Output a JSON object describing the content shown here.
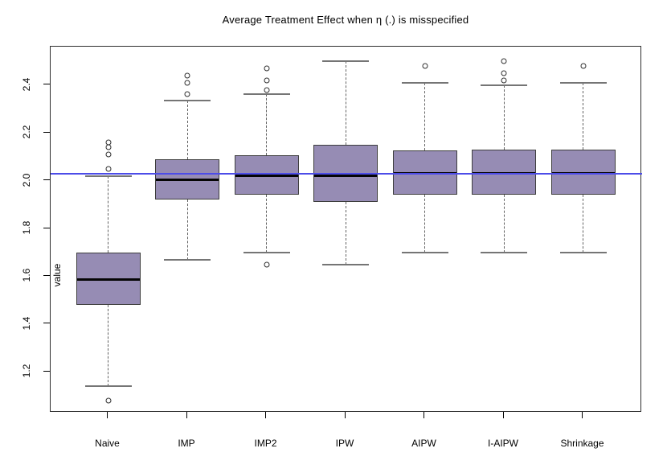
{
  "chart_data": {
    "type": "boxplot",
    "title": "Average Treatment Effect when η (.) is misspecified",
    "xlabel": "",
    "ylabel": "value",
    "ylim": [
      1.03,
      2.56
    ],
    "yticks": [
      "1.2",
      "1.4",
      "1.6",
      "1.8",
      "2.0",
      "2.2",
      "2.4"
    ],
    "ytick_values": [
      1.2,
      1.4,
      1.6,
      1.8,
      2.0,
      2.2,
      2.4
    ],
    "grid": false,
    "legend": "none",
    "categories": [
      "Naive",
      "IMP",
      "IMP2",
      "IPW",
      "AIPW",
      "I-AIPW",
      "Shrinkage"
    ],
    "reference_line": {
      "value": 2.03,
      "color": "#4c4ce8"
    },
    "box_fill_color": "#968cb4",
    "box_border_color": "#3d3d3d",
    "median_color": "#050505",
    "series": [
      {
        "name": "Naive",
        "whisker_low": 1.14,
        "q1": 1.48,
        "median": 1.585,
        "q3": 1.7,
        "whisker_high": 2.02,
        "outliers": [
          2.16,
          2.14,
          2.11,
          2.05,
          1.08
        ]
      },
      {
        "name": "IMP",
        "whisker_low": 1.67,
        "q1": 1.92,
        "median": 2.005,
        "q3": 2.09,
        "whisker_high": 2.335,
        "outliers": [
          2.44,
          2.41,
          2.36
        ]
      },
      {
        "name": "IMP2",
        "whisker_low": 1.7,
        "q1": 1.94,
        "median": 2.02,
        "q3": 2.105,
        "whisker_high": 2.36,
        "outliers": [
          2.47,
          2.42,
          2.38,
          1.65
        ]
      },
      {
        "name": "IPW",
        "whisker_low": 1.65,
        "q1": 1.91,
        "median": 2.02,
        "q3": 2.15,
        "whisker_high": 2.5,
        "outliers": []
      },
      {
        "name": "AIPW",
        "whisker_low": 1.7,
        "q1": 1.94,
        "median": 2.03,
        "q3": 2.125,
        "whisker_high": 2.41,
        "outliers": [
          2.48
        ]
      },
      {
        "name": "I-AIPW",
        "whisker_low": 1.7,
        "q1": 1.94,
        "median": 2.03,
        "q3": 2.13,
        "whisker_high": 2.4,
        "outliers": [
          2.5,
          2.45,
          2.42
        ]
      },
      {
        "name": "Shrinkage",
        "whisker_low": 1.7,
        "q1": 1.94,
        "median": 2.03,
        "q3": 2.13,
        "whisker_high": 2.41,
        "outliers": [
          2.48
        ]
      }
    ]
  }
}
